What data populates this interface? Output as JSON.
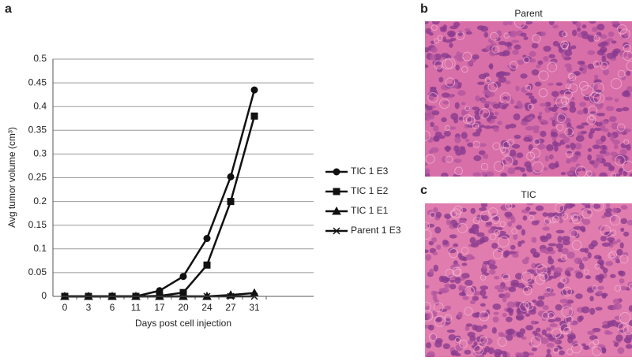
{
  "chart_data": {
    "type": "line",
    "label": "a",
    "xlabel": "Days post cell injection",
    "ylabel": "Avg tumor volume (cm³)",
    "categories": [
      "0",
      "3",
      "6",
      "11",
      "17",
      "20",
      "24",
      "27",
      "31"
    ],
    "ylim": [
      0,
      0.5
    ],
    "yticks": [
      0,
      0.05,
      0.1,
      0.15,
      0.2,
      0.25,
      0.3,
      0.35,
      0.4,
      0.45,
      0.5
    ],
    "grid": true,
    "series": [
      {
        "name": "TIC 1 E3",
        "color": "#111111",
        "marker": "circle",
        "values": [
          0,
          0,
          0,
          0,
          0.012,
          0.042,
          0.122,
          0.252,
          0.435
        ]
      },
      {
        "name": "TIC 1 E2",
        "color": "#111111",
        "marker": "square",
        "values": [
          0,
          0,
          0,
          0,
          0.001,
          0.008,
          0.066,
          0.2,
          0.38
        ]
      },
      {
        "name": "TIC 1 E1",
        "color": "#111111",
        "marker": "triangle",
        "values": [
          0,
          0,
          0,
          0,
          0,
          0,
          0,
          0.003,
          0.007
        ]
      },
      {
        "name": "Parent 1 E3",
        "color": "#111111",
        "marker": "x",
        "values": [
          0,
          0,
          0,
          0,
          0,
          0,
          0,
          0,
          0
        ]
      }
    ]
  },
  "panels": [
    {
      "label": "b",
      "title": "Parent"
    },
    {
      "label": "c",
      "title": "TIC"
    }
  ]
}
